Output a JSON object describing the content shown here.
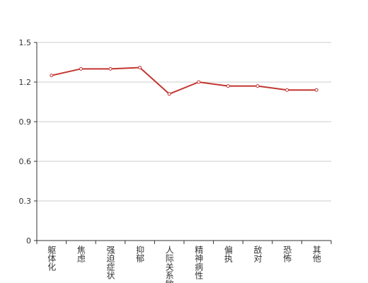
{
  "chart_data": {
    "type": "line",
    "categories": [
      "躯体化",
      "焦虑",
      "强迫症状",
      "抑郁",
      "人际关系敏感",
      "精神病性",
      "偏执",
      "敌对",
      "恐怖",
      "其他"
    ],
    "values": [
      1.25,
      1.3,
      1.3,
      1.31,
      1.11,
      1.2,
      1.17,
      1.17,
      1.14,
      1.14
    ],
    "color": "#c23531",
    "ylim": [
      0,
      1.5
    ],
    "yticks": [
      0,
      0.3,
      0.6,
      0.9,
      1.2,
      1.5
    ],
    "grid": true
  }
}
